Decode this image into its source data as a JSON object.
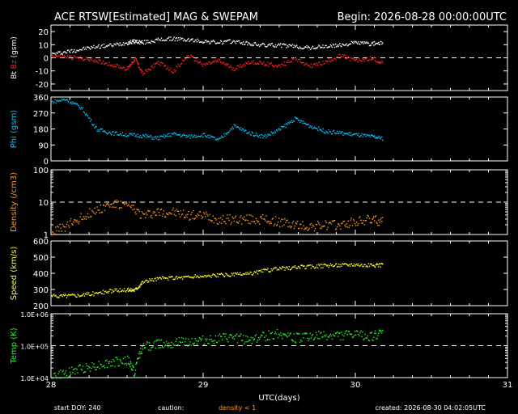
{
  "header": {
    "title": "ACE RTSW[Estimated] MAG & SWEPAM",
    "begin": "Begin: 2026-08-28 00:00:00UTC"
  },
  "footer": {
    "start_doy": "start DOY: 240",
    "caution": "caution:",
    "caution_note": "density < 1",
    "created": "created: 2026-08-30 04:02:05UTC"
  },
  "colors": {
    "background": "#000000",
    "axes": "#ffffff",
    "bt": "#ffffff",
    "bz": "#ff2020",
    "phi": "#00c8ff",
    "density": "#ff9a1a",
    "speed": "#ffff20",
    "temp": "#20ff20",
    "caution": "#ff9a1a"
  },
  "chart_data": [
    {
      "type": "scatter",
      "panel": "mag",
      "ylabel_parts": [
        "Bt",
        "Bz",
        "(gsm)"
      ],
      "ylim": [
        -25,
        25
      ],
      "yticks": [
        -20,
        -10,
        0,
        10,
        20
      ],
      "refline": 0,
      "xlim": [
        28,
        31
      ],
      "series": [
        {
          "name": "Bt",
          "x": [
            28.0,
            28.1,
            28.2,
            28.3,
            28.4,
            28.5,
            28.55,
            28.6,
            28.7,
            28.8,
            28.9,
            29.0,
            29.1,
            29.2,
            29.3,
            29.4,
            29.5,
            29.6,
            29.7,
            29.8,
            29.9,
            30.0,
            30.1,
            30.18
          ],
          "values": [
            3,
            5,
            7,
            9,
            10,
            12,
            13,
            12,
            14,
            15,
            14,
            13,
            12,
            13,
            11,
            10,
            10,
            9,
            8,
            9,
            10,
            12,
            11,
            12
          ]
        },
        {
          "name": "Bz",
          "x": [
            28.0,
            28.1,
            28.2,
            28.3,
            28.4,
            28.5,
            28.55,
            28.6,
            28.7,
            28.8,
            28.9,
            29.0,
            29.1,
            29.2,
            29.3,
            29.4,
            29.5,
            29.6,
            29.7,
            29.8,
            29.9,
            30.0,
            30.1,
            30.18
          ],
          "values": [
            2,
            1,
            0,
            -2,
            -5,
            -8,
            0,
            -12,
            -3,
            -10,
            2,
            -5,
            -2,
            -8,
            -3,
            -4,
            -6,
            0,
            -6,
            -3,
            2,
            -2,
            0,
            -3
          ]
        }
      ]
    },
    {
      "type": "scatter",
      "panel": "phi",
      "ylabel_parts": [
        "Phi (gsm)"
      ],
      "ylim": [
        0,
        360
      ],
      "yticks": [
        0,
        90,
        180,
        270,
        360
      ],
      "xlim": [
        28,
        31
      ],
      "series": [
        {
          "name": "Phi",
          "x": [
            28.0,
            28.1,
            28.2,
            28.3,
            28.4,
            28.5,
            28.6,
            28.7,
            28.8,
            28.9,
            29.0,
            29.1,
            29.2,
            29.3,
            29.4,
            29.5,
            29.6,
            29.7,
            29.8,
            29.9,
            30.0,
            30.1,
            30.18
          ],
          "values": [
            335,
            350,
            300,
            180,
            160,
            150,
            145,
            130,
            155,
            140,
            150,
            120,
            200,
            160,
            140,
            180,
            240,
            200,
            170,
            160,
            150,
            140,
            130
          ]
        }
      ]
    },
    {
      "type": "scatter",
      "panel": "density",
      "ylabel_parts": [
        "Density (/cm3)"
      ],
      "ylim": [
        1,
        100
      ],
      "log": true,
      "yticks": [
        1,
        10,
        100
      ],
      "refline": 10,
      "xlim": [
        28,
        31
      ],
      "series": [
        {
          "name": "Density",
          "x": [
            28.0,
            28.1,
            28.2,
            28.3,
            28.4,
            28.5,
            28.6,
            28.7,
            28.8,
            28.9,
            29.0,
            29.1,
            29.2,
            29.3,
            29.4,
            29.5,
            29.6,
            29.7,
            29.8,
            29.9,
            30.0,
            30.1,
            30.18
          ],
          "values": [
            1.2,
            1.8,
            3.5,
            6,
            9,
            8,
            4,
            5,
            5,
            4,
            4,
            3,
            3,
            3,
            3,
            2.5,
            2,
            1.8,
            2,
            2,
            2.5,
            3,
            2.5
          ]
        }
      ]
    },
    {
      "type": "scatter",
      "panel": "speed",
      "ylabel_parts": [
        "Speed (km/s)"
      ],
      "ylim": [
        200,
        600
      ],
      "yticks": [
        200,
        300,
        400,
        500,
        600
      ],
      "xlim": [
        28,
        31
      ],
      "series": [
        {
          "name": "Speed",
          "x": [
            28.0,
            28.1,
            28.2,
            28.3,
            28.4,
            28.5,
            28.55,
            28.6,
            28.7,
            28.8,
            28.9,
            29.0,
            29.1,
            29.2,
            29.3,
            29.4,
            29.5,
            29.6,
            29.7,
            29.8,
            29.9,
            30.0,
            30.1,
            30.18
          ],
          "values": [
            262,
            265,
            270,
            280,
            295,
            300,
            302,
            350,
            370,
            375,
            380,
            385,
            390,
            395,
            400,
            420,
            430,
            440,
            445,
            450,
            455,
            460,
            450,
            455
          ]
        }
      ]
    },
    {
      "type": "scatter",
      "panel": "temp",
      "ylabel_parts": [
        "Temp (K)"
      ],
      "ylim": [
        10000,
        1000000
      ],
      "log": true,
      "yticks": [
        10000,
        100000,
        1000000
      ],
      "yticklabels": [
        "1.0E+04",
        "1.0E+05",
        "1.0E+06"
      ],
      "refline": 100000,
      "xlim": [
        28,
        31
      ],
      "xticks": [
        28,
        29,
        30,
        31
      ],
      "xlabel": "UTC(days)",
      "series": [
        {
          "name": "Temp",
          "x": [
            28.0,
            28.1,
            28.2,
            28.3,
            28.4,
            28.5,
            28.55,
            28.6,
            28.7,
            28.8,
            28.9,
            29.0,
            29.1,
            29.2,
            29.3,
            29.4,
            29.5,
            29.6,
            29.7,
            29.8,
            29.9,
            30.0,
            30.1,
            30.18
          ],
          "values": [
            11000,
            14000,
            20000,
            25000,
            30000,
            35000,
            12000,
            90000,
            120000,
            130000,
            140000,
            150000,
            170000,
            180000,
            160000,
            200000,
            250000,
            180000,
            200000,
            210000,
            220000,
            230000,
            200000,
            250000
          ]
        }
      ]
    }
  ]
}
